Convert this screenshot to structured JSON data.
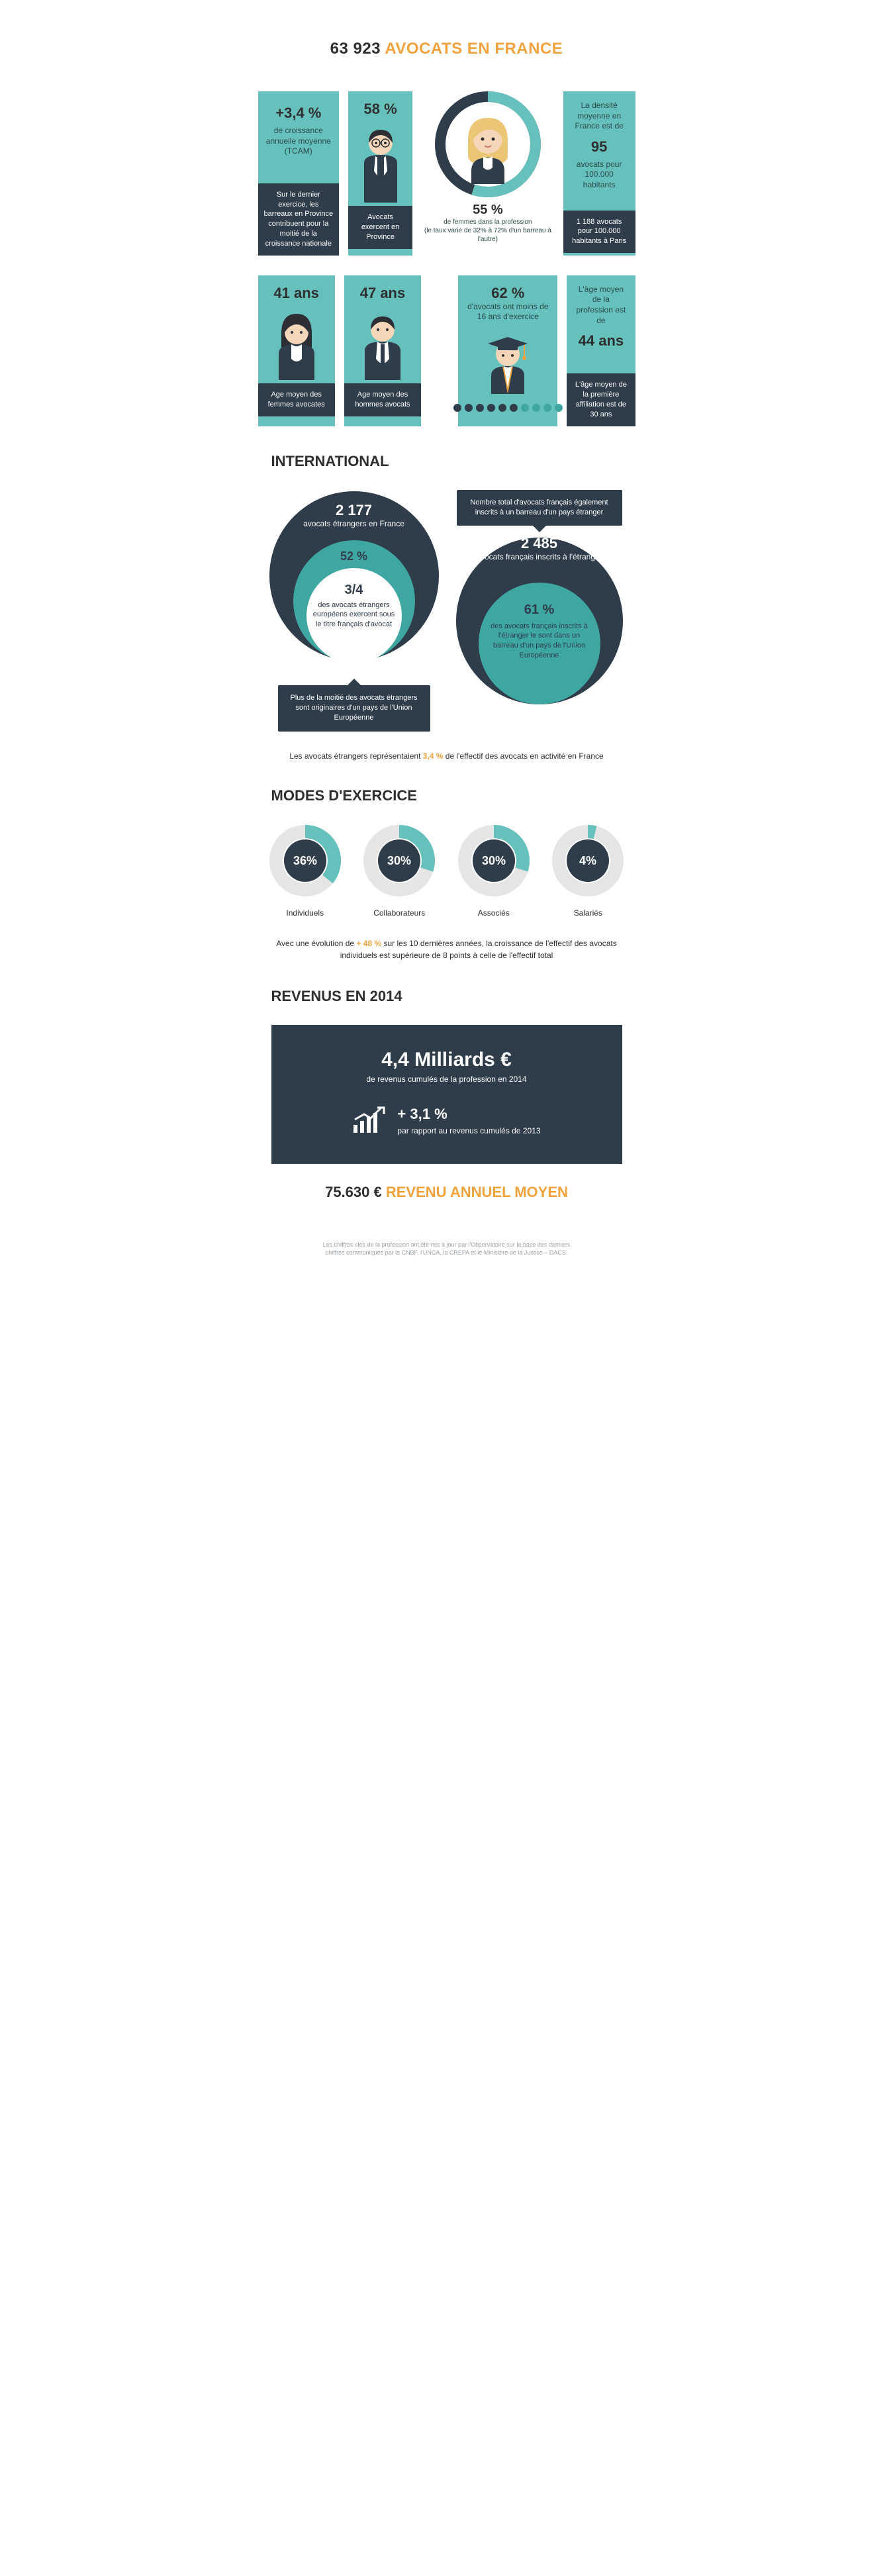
{
  "colors": {
    "teal": "#66c1bd",
    "teal_dark": "#3fa7a2",
    "navy": "#2f3c49",
    "orange": "#f0a33c",
    "dark_text": "#2f2f2f",
    "light_grey": "#e5e5e5",
    "skin": "#f5d6b8",
    "hair_blonde": "#eac676",
    "hair_dark": "#2c2e34",
    "white": "#ffffff"
  },
  "title": {
    "number": "63 923",
    "text": "AVOCATS EN FRANCE"
  },
  "row1": {
    "growth": {
      "value": "+3,4 %",
      "label": "de croissance annuelle moyenne (TCAM)",
      "foot": "Sur le dernier exercice, les barreaux en Province contribuent pour la moitié de la croissance nationale"
    },
    "province": {
      "value": "58 %",
      "foot": "Avocats exercent en Province"
    },
    "women": {
      "pct": 55,
      "value": "55 %",
      "label": "de femmes dans la profession\n(le taux varie de 32% à 72% d'un barreau à l'autre)"
    },
    "density": {
      "intro": "La densité moyenne en France est de",
      "value": "95",
      "label": "avocats pour 100.000 habitants",
      "foot": "1 188 avocats pour 100.000 habitants à Paris"
    }
  },
  "row2": {
    "female_age": {
      "value": "41 ans",
      "foot": "Age moyen des femmes avocates"
    },
    "male_age": {
      "value": "47 ans",
      "foot": "Age moyen des hommes avocats"
    },
    "experience": {
      "value": "62 %",
      "label": "d'avocats ont moins de 16 ans d'exercice",
      "dots_filled": 6,
      "dots_total": 10
    },
    "avg_age": {
      "intro": "L'âge moyen de la profession est de",
      "value": "44 ans",
      "foot": "L'âge moyen de la première affiliation est de 30 ans"
    }
  },
  "international": {
    "title": "INTERNATIONAL",
    "left": {
      "outer_value": "2 177",
      "outer_label": "avocats étrangers en France",
      "mid_value": "52 %",
      "inner_value": "3/4",
      "inner_label": "des avocats étrangers européens exercent sous le titre français d'avocat",
      "callout": "Plus de la moitié des avocats étrangers sont originaires d'un pays de l'Union Européenne"
    },
    "right": {
      "top_callout": "Nombre total d'avocats français également inscrits à un barreau d'un pays étranger",
      "outer_value": "2 485",
      "outer_label": "avocats français inscrits à l'étranger",
      "inner_value": "61 %",
      "inner_label": "des avocats français inscrits à l'étranger le sont dans un barreau d'un pays de l'Union Européenne"
    },
    "note_pre": "Les avocats étrangers représentaient ",
    "note_pct": "3,4 %",
    "note_post": " de l'effectif des avocats en activité en France"
  },
  "modes": {
    "title": "MODES D'EXERCICE",
    "items": [
      {
        "pct": 36,
        "label": "Individuels"
      },
      {
        "pct": 30,
        "label": "Collaborateurs"
      },
      {
        "pct": 30,
        "label": "Associés"
      },
      {
        "pct": 4,
        "label": "Salariés"
      }
    ],
    "note_pre": "Avec une évolution de ",
    "note_pct": "+ 48 %",
    "note_post": " sur les 10 dernières années, la croissance de l'effectif des avocats individuels est supérieure de 8 points à celle de l'effectif total"
  },
  "revenus": {
    "title": "REVENUS EN 2014",
    "big": "4,4 Milliards €",
    "big_sub": "de revenus cumulés de la profession en 2014",
    "delta": "+ 3,1 %",
    "delta_sub": "par rapport au revenus cumulés de 2013"
  },
  "final": {
    "value": "75.630 €",
    "label": "REVENU ANNUEL MOYEN"
  },
  "footnote": "Les chiffres clés de la profession ont été mis à jour par l'Observatoire sur la base des derniers\nchiffres communiqués par la CNBF, l'UNCA, la CREPA et le Ministère de la Justice – DACS."
}
